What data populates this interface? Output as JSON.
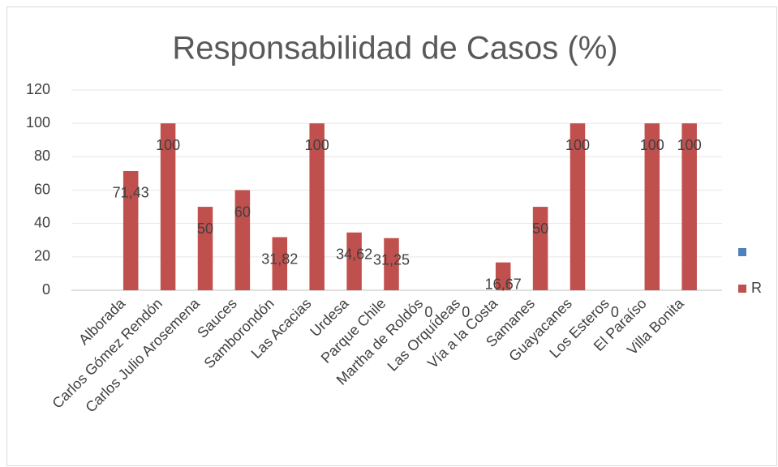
{
  "chart_data": {
    "type": "bar",
    "title": "Responsabilidad de Casos (%)",
    "categories": [
      "Alborada",
      "Carlos Gómez Rendón",
      "Carlos Julio Arosemena",
      "Sauces",
      "Samborondón",
      "Las Acacias",
      "Urdesa",
      "Parque Chile",
      "Martha de Roldós",
      "Las Orquídeas",
      "Vía a la Costa",
      "Samanes",
      "Guayacanes",
      "Los Esteros",
      "El Paraíso",
      "Villa Bonita"
    ],
    "series": [
      {
        "color": "#4f81bd",
        "values": [
          null,
          null,
          null,
          null,
          null,
          null,
          null,
          null,
          null,
          null,
          null,
          null,
          null,
          null,
          null,
          null
        ]
      },
      {
        "name": "R",
        "color": "#c0504d",
        "values": [
          71.43,
          100,
          50,
          60,
          31.82,
          100,
          34.62,
          31.25,
          0,
          0,
          16.67,
          50,
          100,
          0,
          100,
          100
        ],
        "value_labels": [
          "71,43",
          "100",
          "50",
          "60",
          "31,82",
          "100",
          "34,62",
          "31,25",
          "0",
          "0",
          "16,67",
          "50",
          "100",
          "0",
          "100",
          "100"
        ]
      }
    ],
    "ylim": [
      0,
      120
    ],
    "yticks": [
      0,
      20,
      40,
      60,
      80,
      100,
      120
    ],
    "grid": true,
    "legend": "right"
  }
}
